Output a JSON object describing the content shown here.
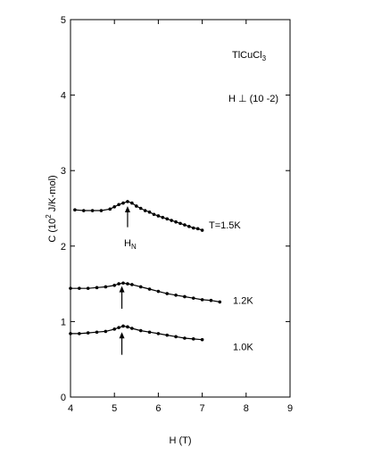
{
  "chart_data": {
    "type": "line",
    "title": "",
    "xlabel": "H (T)",
    "ylabel": "C (10^2 J/K-mol)",
    "ylabel_parts": {
      "pre": "C (10",
      "exp": "2",
      "post": " J/K-mol)"
    },
    "xlim": [
      4,
      9
    ],
    "ylim": [
      0,
      5
    ],
    "xticks": [
      4,
      5,
      6,
      7,
      8,
      9
    ],
    "yticks": [
      0,
      1,
      2,
      3,
      4,
      5
    ],
    "grid": false,
    "series": [
      {
        "name": "T=1.5K",
        "x": [
          4.1,
          4.3,
          4.5,
          4.7,
          4.9,
          5.0,
          5.1,
          5.2,
          5.3,
          5.4,
          5.5,
          5.6,
          5.7,
          5.8,
          5.9,
          6.0,
          6.1,
          6.2,
          6.3,
          6.4,
          6.5,
          6.6,
          6.7,
          6.8,
          6.9,
          7.0
        ],
        "y": [
          2.48,
          2.47,
          2.47,
          2.47,
          2.49,
          2.52,
          2.55,
          2.57,
          2.59,
          2.57,
          2.53,
          2.5,
          2.47,
          2.45,
          2.42,
          2.4,
          2.38,
          2.36,
          2.34,
          2.32,
          2.3,
          2.28,
          2.26,
          2.24,
          2.23,
          2.21
        ]
      },
      {
        "name": "1.2K",
        "x": [
          4.0,
          4.2,
          4.4,
          4.6,
          4.8,
          5.0,
          5.1,
          5.2,
          5.3,
          5.4,
          5.6,
          5.8,
          6.0,
          6.2,
          6.4,
          6.6,
          6.8,
          7.0,
          7.2,
          7.4
        ],
        "y": [
          1.44,
          1.44,
          1.44,
          1.45,
          1.46,
          1.48,
          1.5,
          1.51,
          1.5,
          1.49,
          1.46,
          1.43,
          1.4,
          1.37,
          1.35,
          1.33,
          1.31,
          1.29,
          1.28,
          1.26
        ]
      },
      {
        "name": "1.0K",
        "x": [
          4.0,
          4.2,
          4.4,
          4.6,
          4.8,
          5.0,
          5.1,
          5.2,
          5.3,
          5.4,
          5.6,
          5.8,
          6.0,
          6.2,
          6.4,
          6.6,
          6.8,
          7.0
        ],
        "y": [
          0.84,
          0.84,
          0.85,
          0.86,
          0.87,
          0.9,
          0.92,
          0.94,
          0.93,
          0.91,
          0.88,
          0.86,
          0.84,
          0.82,
          0.8,
          0.78,
          0.77,
          0.76
        ]
      }
    ],
    "annotations": {
      "compound": {
        "pre": "TlCuCl",
        "sub": "3"
      },
      "orientation": "H ⊥ (10 -2)",
      "hn": {
        "main": "H",
        "sub": "N"
      },
      "series_labels": [
        {
          "text": "T=1.5K",
          "x": 7.15,
          "y": 2.28
        },
        {
          "text": "1.2K",
          "x": 7.7,
          "y": 1.28
        },
        {
          "text": "1.0K",
          "x": 7.7,
          "y": 0.67
        }
      ],
      "arrows": [
        {
          "x": 5.3,
          "y_from": 2.25,
          "y_to": 2.53
        },
        {
          "x": 5.17,
          "y_from": 1.17,
          "y_to": 1.47
        },
        {
          "x": 5.17,
          "y_from": 0.56,
          "y_to": 0.86
        }
      ]
    }
  }
}
